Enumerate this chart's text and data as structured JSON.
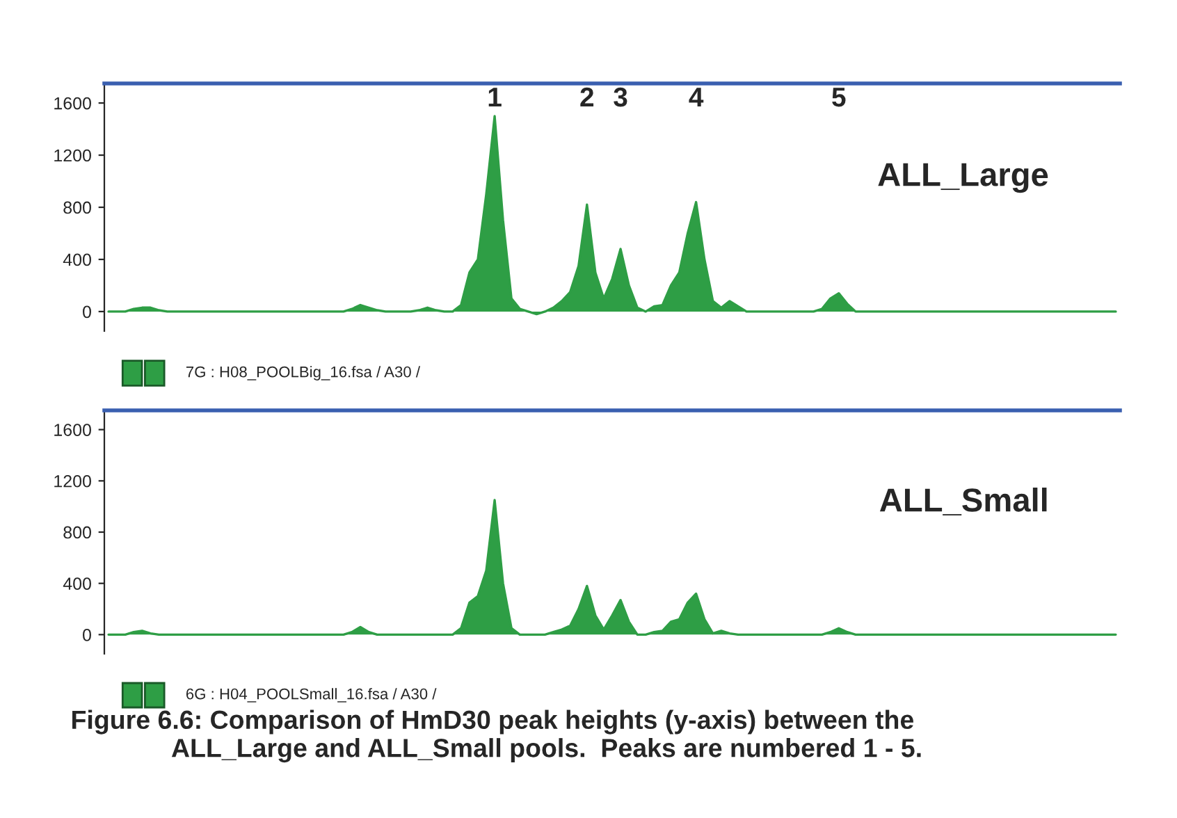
{
  "chart_data": [
    {
      "type": "area",
      "categories": [
        null,
        null,
        null,
        null,
        null,
        null,
        null,
        null,
        null,
        null,
        null,
        null,
        null,
        null,
        null,
        null,
        null,
        null,
        null,
        null,
        null,
        null,
        null,
        null,
        null,
        null,
        null,
        null,
        null,
        null,
        null,
        null,
        null,
        null,
        null,
        null,
        null,
        null,
        null,
        null,
        null,
        null,
        null,
        null,
        null,
        null,
        null,
        null,
        null,
        null,
        null,
        null,
        null,
        null,
        null,
        null,
        null,
        null,
        null,
        null,
        null,
        null,
        null,
        null,
        null,
        null,
        null,
        null,
        null,
        null,
        null,
        null,
        null,
        null,
        null,
        null,
        null,
        null,
        null,
        null,
        null,
        null,
        null,
        null,
        null,
        null,
        null,
        null,
        null,
        null,
        null,
        null,
        null,
        null,
        null,
        null,
        null,
        null,
        null,
        null,
        null,
        null,
        null,
        null,
        null,
        null,
        null,
        null,
        null,
        null,
        null,
        null,
        null,
        null,
        null,
        null,
        null,
        null,
        null,
        null,
        null
      ],
      "series": [
        {
          "name": "ALL_Large",
          "color": "#2e9e45",
          "values": [
            0,
            0,
            0,
            20,
            30,
            30,
            10,
            0,
            0,
            0,
            0,
            0,
            0,
            0,
            0,
            0,
            0,
            0,
            0,
            0,
            0,
            0,
            0,
            0,
            0,
            0,
            0,
            0,
            0,
            20,
            50,
            30,
            10,
            0,
            0,
            0,
            0,
            10,
            30,
            10,
            0,
            0,
            50,
            300,
            400,
            900,
            1500,
            700,
            100,
            20,
            0,
            -20,
            0,
            30,
            80,
            150,
            350,
            820,
            300,
            100,
            250,
            480,
            200,
            30,
            0,
            40,
            50,
            200,
            300,
            600,
            840,
            400,
            80,
            30,
            80,
            40,
            0,
            0,
            0,
            0,
            0,
            0,
            0,
            0,
            0,
            20,
            100,
            140,
            60,
            0,
            0,
            0,
            0,
            0,
            0,
            0,
            0,
            0,
            0,
            0,
            0,
            0,
            0,
            0,
            0,
            0,
            0,
            0,
            0,
            0,
            0,
            0,
            0,
            0,
            0,
            0,
            0,
            0,
            0,
            0,
            0
          ]
        }
      ],
      "ylim": [
        -150,
        1750
      ],
      "yticks": [
        0,
        400,
        800,
        1200,
        1600
      ],
      "tick_labels": "y",
      "grid": false,
      "legend": false,
      "annotations": [
        "1",
        "2",
        "3",
        "4",
        "5",
        "7G : H08_POOLBig_16.fsa / A30 /"
      ]
    },
    {
      "type": "area",
      "categories": [
        null,
        null,
        null,
        null,
        null,
        null,
        null,
        null,
        null,
        null,
        null,
        null,
        null,
        null,
        null,
        null,
        null,
        null,
        null,
        null,
        null,
        null,
        null,
        null,
        null,
        null,
        null,
        null,
        null,
        null,
        null,
        null,
        null,
        null,
        null,
        null,
        null,
        null,
        null,
        null,
        null,
        null,
        null,
        null,
        null,
        null,
        null,
        null,
        null,
        null,
        null,
        null,
        null,
        null,
        null,
        null,
        null,
        null,
        null,
        null,
        null,
        null,
        null,
        null,
        null,
        null,
        null,
        null,
        null,
        null,
        null,
        null,
        null,
        null,
        null,
        null,
        null,
        null,
        null,
        null,
        null,
        null,
        null,
        null,
        null,
        null,
        null,
        null,
        null,
        null,
        null,
        null,
        null,
        null,
        null,
        null,
        null,
        null,
        null,
        null,
        null,
        null,
        null,
        null,
        null,
        null,
        null,
        null,
        null,
        null,
        null,
        null,
        null,
        null,
        null,
        null,
        null,
        null,
        null,
        null,
        null
      ],
      "series": [
        {
          "name": "ALL_Small",
          "color": "#2e9e45",
          "values": [
            0,
            0,
            0,
            20,
            30,
            10,
            0,
            0,
            0,
            0,
            0,
            0,
            0,
            0,
            0,
            0,
            0,
            0,
            0,
            0,
            0,
            0,
            0,
            0,
            0,
            0,
            0,
            0,
            0,
            20,
            60,
            20,
            0,
            0,
            0,
            0,
            0,
            0,
            0,
            0,
            0,
            0,
            50,
            250,
            300,
            500,
            1050,
            400,
            50,
            0,
            0,
            0,
            0,
            20,
            40,
            70,
            200,
            380,
            150,
            40,
            150,
            270,
            100,
            0,
            0,
            20,
            30,
            100,
            120,
            250,
            320,
            120,
            10,
            30,
            10,
            0,
            0,
            0,
            0,
            0,
            0,
            0,
            0,
            0,
            0,
            0,
            20,
            50,
            20,
            0,
            0,
            0,
            0,
            0,
            0,
            0,
            0,
            0,
            0,
            0,
            0,
            0,
            0,
            0,
            0,
            0,
            0,
            0,
            0,
            0,
            0,
            0,
            0,
            0,
            0,
            0,
            0,
            0,
            0,
            0,
            0
          ]
        }
      ],
      "ylim": [
        -150,
        1750
      ],
      "yticks": [
        0,
        400,
        800,
        1200,
        1600
      ],
      "tick_labels": "y",
      "grid": false,
      "legend": false,
      "annotations": [
        "6G : H04_POOLSmall_16.fsa / A30 /",
        "Figure 6.6: Comparison of HmD30 peak heights (y-axis) between the\n              ALL_Large and ALL_Small pools.  Peaks are numbered 1 - 5."
      ]
    }
  ]
}
